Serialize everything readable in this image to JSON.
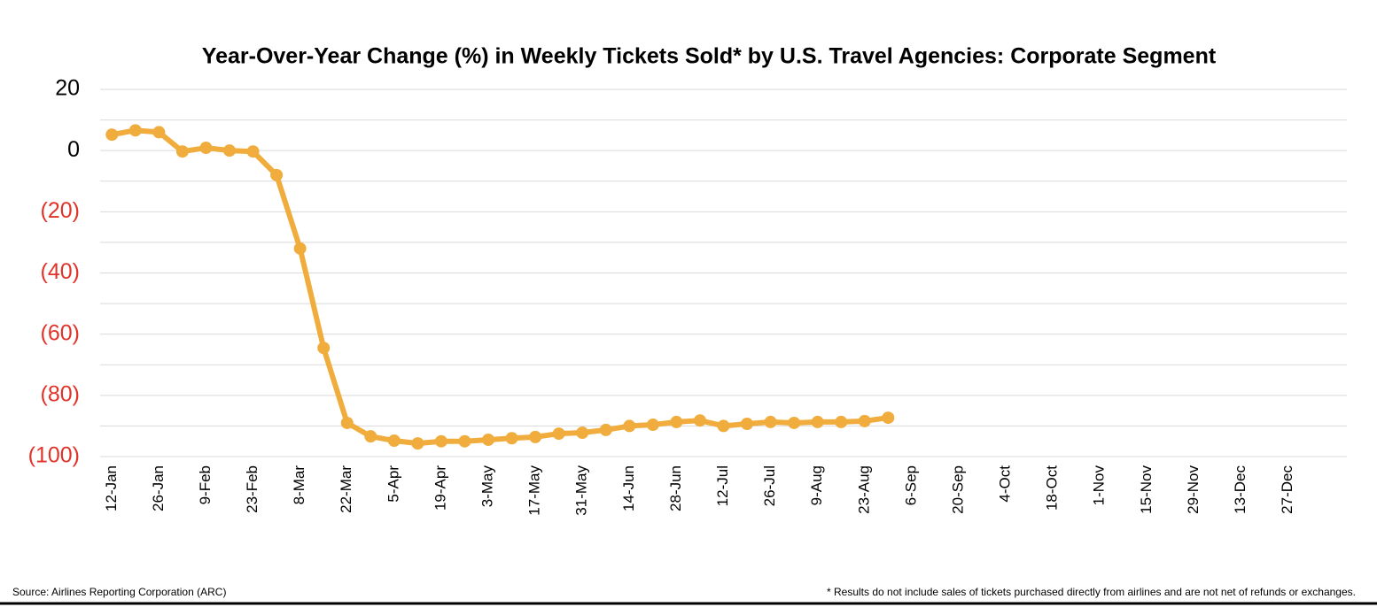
{
  "chart_data": {
    "type": "line",
    "title": "Year-Over-Year Change (%) in Weekly Tickets Sold* by U.S. Travel Agencies: Corporate Segment",
    "source": "Source: Airlines Reporting Corporation (ARC)",
    "footnote": "* Results do not include sales of tickets purchased directly from airlines and are not net of refunds or exchanges.",
    "categories": [
      "12-Jan",
      null,
      "26-Jan",
      null,
      "9-Feb",
      null,
      "23-Feb",
      null,
      "8-Mar",
      null,
      "22-Mar",
      null,
      "5-Apr",
      null,
      "19-Apr",
      null,
      "3-May",
      null,
      "17-May",
      null,
      "31-May",
      null,
      "14-Jun",
      null,
      "28-Jun",
      null,
      "12-Jul",
      null,
      "26-Jul",
      null,
      "9-Aug",
      null,
      "23-Aug",
      null,
      "6-Sep",
      null,
      "20-Sep",
      null,
      "4-Oct",
      null,
      "18-Oct",
      null,
      "1-Nov",
      null,
      "15-Nov",
      null,
      "29-Nov",
      null,
      "13-Dec",
      null,
      "27-Dec",
      null,
      null
    ],
    "series": [
      {
        "name": "Corporate",
        "color": "#f0ad3d",
        "values": [
          5.2,
          6.6,
          6,
          -0.3,
          0.9,
          0,
          -0.3,
          -8,
          -32,
          -64.5,
          -89,
          -93.4,
          -94.8,
          -95.7,
          -95,
          -95,
          -94.5,
          -94,
          -93.6,
          -92.5,
          -92.2,
          -91.3,
          -90,
          -89.6,
          -88.7,
          -88.2,
          -90,
          -89.3,
          -88.7,
          -89,
          -88.7,
          -88.7,
          -88.4,
          -87.3,
          null,
          null,
          null,
          null,
          null,
          null,
          null,
          null,
          null,
          null,
          null,
          null,
          null,
          null,
          null,
          null,
          null,
          null,
          null
        ]
      }
    ],
    "ylim": [
      -100,
      20
    ],
    "yticks": [
      {
        "value": -100,
        "label": "(100)"
      },
      {
        "value": -80,
        "label": "(80)"
      },
      {
        "value": -60,
        "label": "(60)"
      },
      {
        "value": -40,
        "label": "(40)"
      },
      {
        "value": -20,
        "label": "(20)"
      },
      0,
      20
    ],
    "minor_grid": [
      -90,
      -70,
      -50,
      -30,
      -10,
      10
    ],
    "grid": true,
    "negative_tick_color": "#e0332a"
  }
}
